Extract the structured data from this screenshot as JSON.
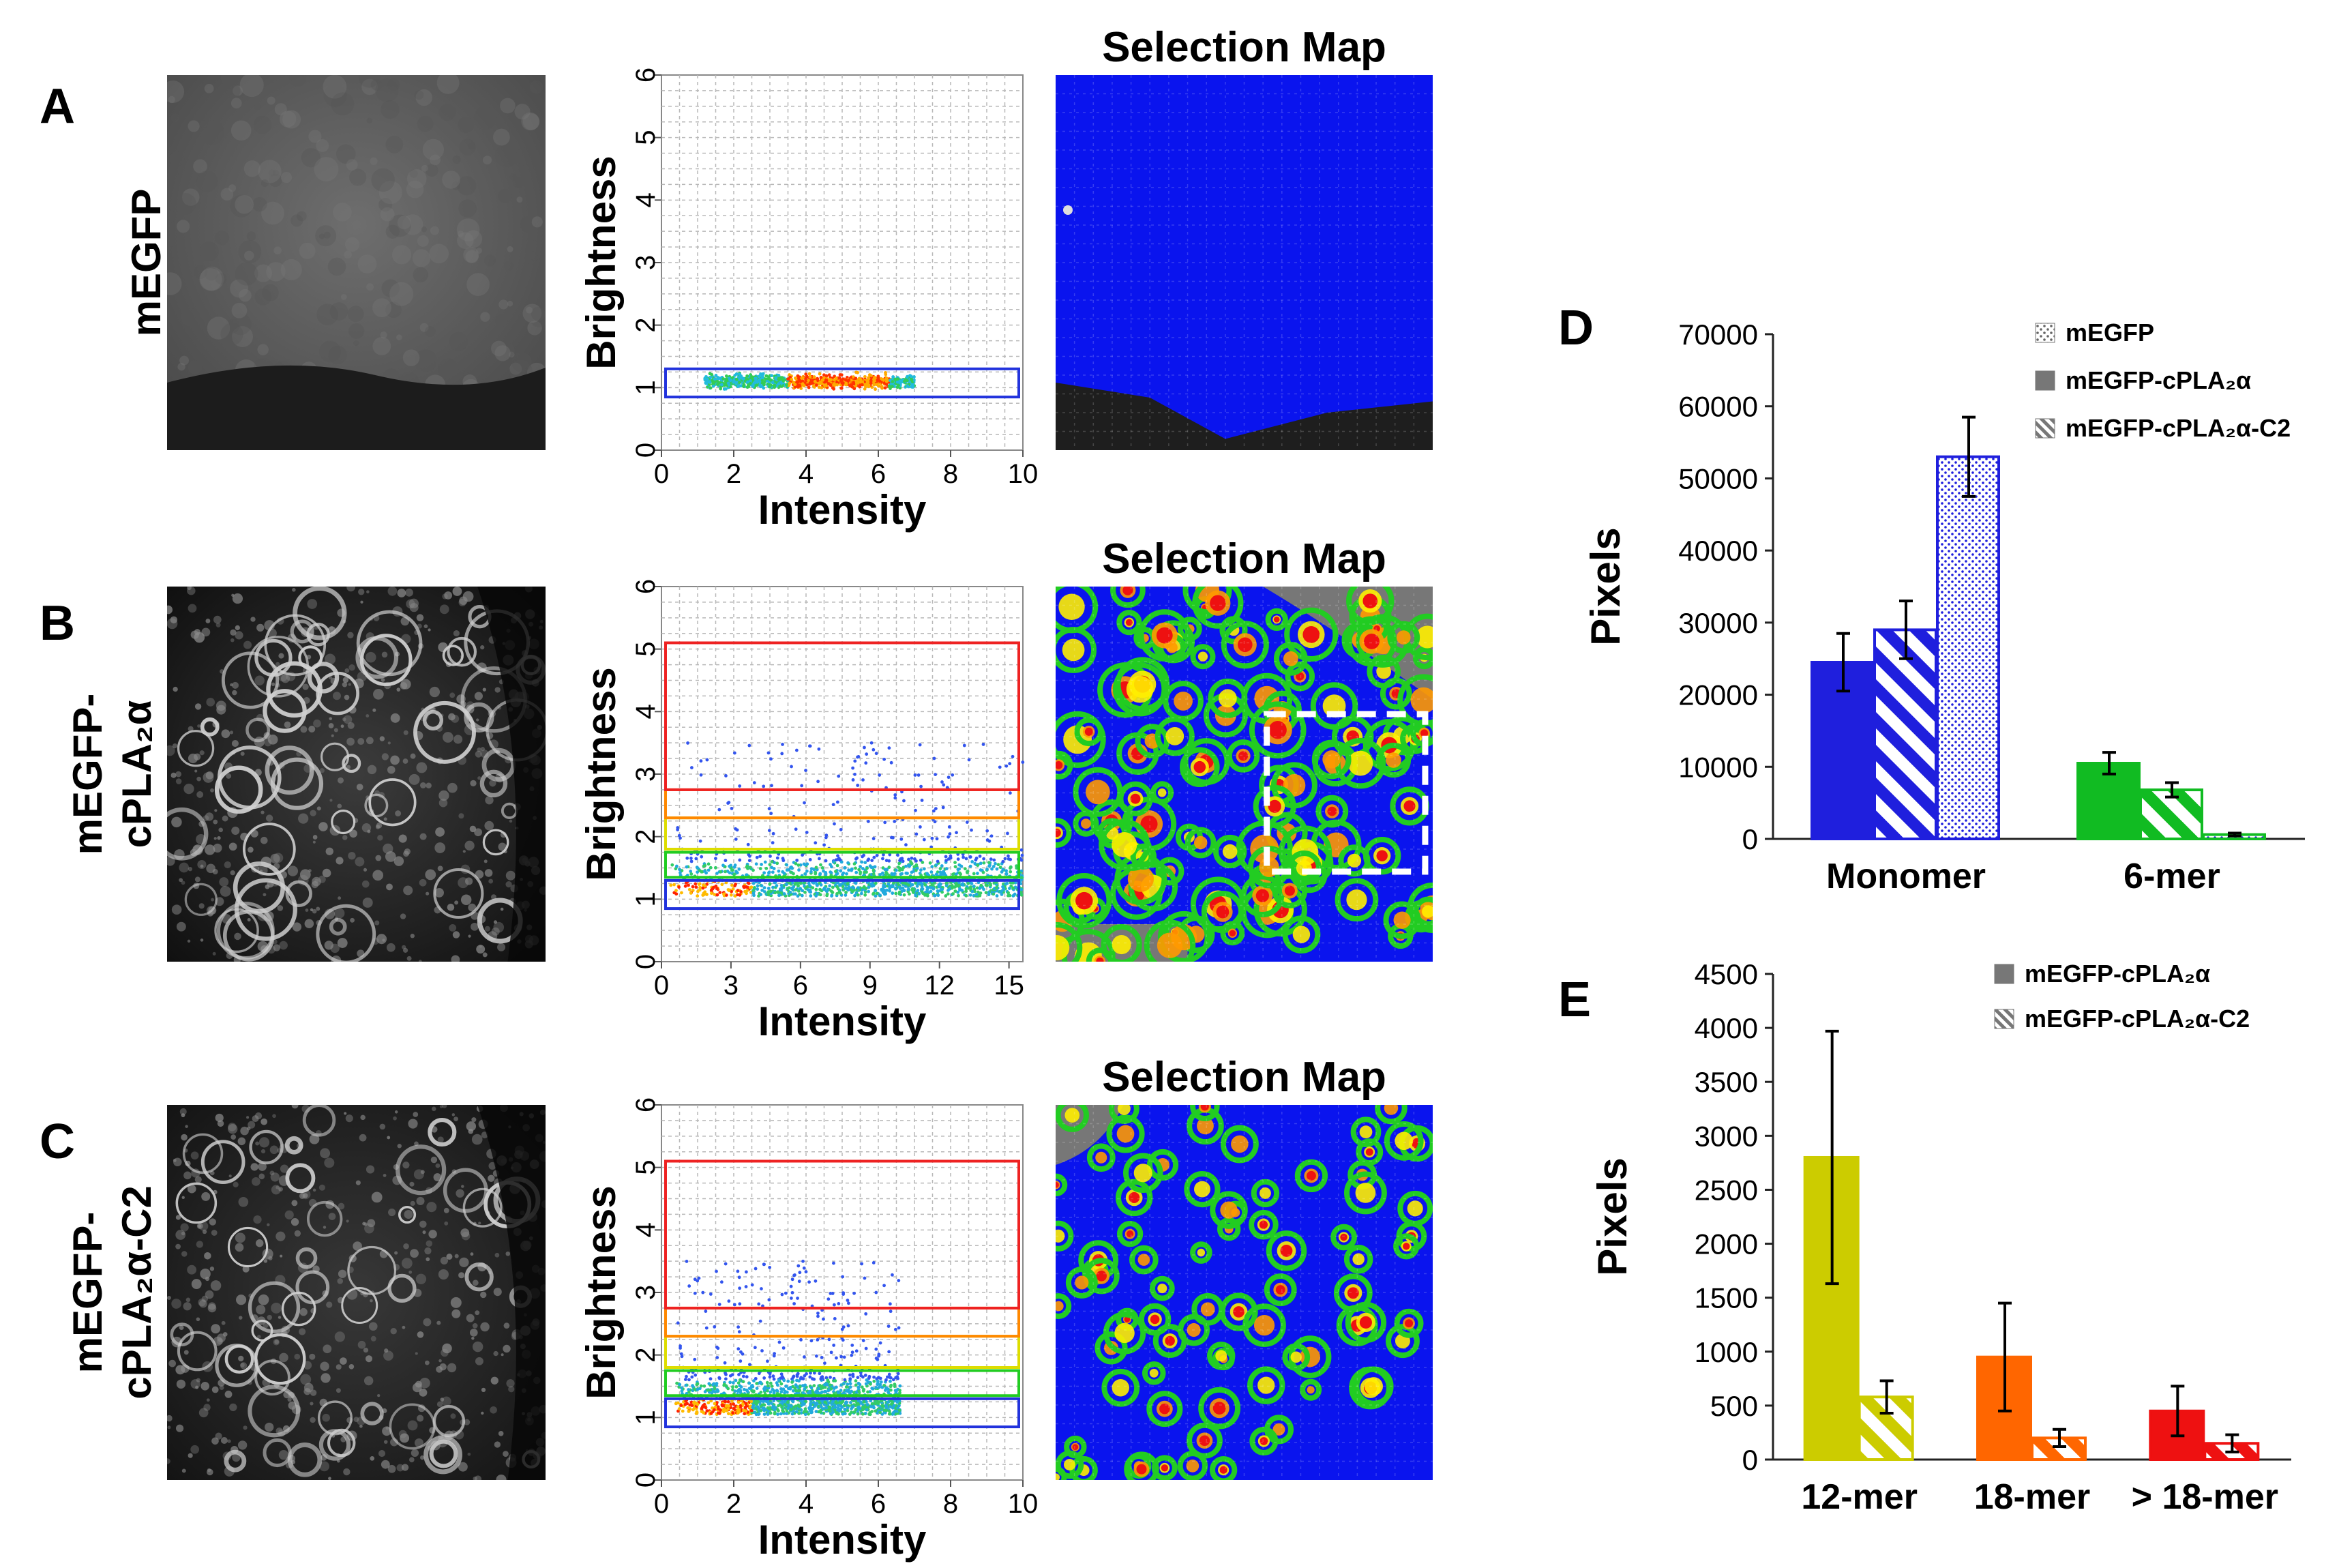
{
  "panel_letters": [
    "A",
    "B",
    "C",
    "D",
    "E"
  ],
  "rows": [
    {
      "row_label_lines": [
        "mEGFP"
      ],
      "map_title": "Selection Map",
      "scatter": {
        "xlabel": "Intensity",
        "ylabel": "Brightness",
        "xticks": [
          "0",
          "2",
          "4",
          "6",
          "8",
          "10"
        ],
        "xlim": [
          0,
          10
        ],
        "yticks": [
          "0",
          "1",
          "2",
          "3",
          "4",
          "5",
          "6"
        ],
        "ylim": [
          0,
          6
        ],
        "selection_boxes": [
          {
            "color": "#2233dd",
            "bmin": 0.85,
            "bmax": 1.3
          }
        ]
      }
    },
    {
      "row_label_lines": [
        "mEGFP-",
        "cPLA₂α"
      ],
      "map_title": "Selection Map",
      "scatter": {
        "xlabel": "Intensity",
        "ylabel": "Brightness",
        "xticks": [
          "0",
          "3",
          "6",
          "9",
          "12",
          "15"
        ],
        "xlim": [
          0,
          15.6
        ],
        "yticks": [
          "0",
          "1",
          "2",
          "3",
          "4",
          "5",
          "6"
        ],
        "ylim": [
          0,
          6
        ],
        "selection_boxes": [
          {
            "color": "#2233dd",
            "bmin": 0.85,
            "bmax": 1.3
          },
          {
            "color": "#22cc22",
            "bmin": 1.35,
            "bmax": 1.75
          },
          {
            "color": "#dddd00",
            "bmin": 1.8,
            "bmax": 2.3
          },
          {
            "color": "#ff8800",
            "bmin": 2.3,
            "bmax": 2.75
          },
          {
            "color": "#ee2222",
            "bmin": 2.75,
            "bmax": 5.1
          }
        ]
      }
    },
    {
      "row_label_lines": [
        "mEGFP-",
        "cPLA₂α-C2"
      ],
      "map_title": "Selection Map",
      "scatter": {
        "xlabel": "Intensity",
        "ylabel": "Brightness",
        "xticks": [
          "0",
          "2",
          "4",
          "6",
          "8",
          "10"
        ],
        "xlim": [
          0,
          10
        ],
        "yticks": [
          "0",
          "1",
          "2",
          "3",
          "4",
          "5",
          "6"
        ],
        "ylim": [
          0,
          6
        ],
        "selection_boxes": [
          {
            "color": "#2233dd",
            "bmin": 0.85,
            "bmax": 1.3
          },
          {
            "color": "#22cc22",
            "bmin": 1.35,
            "bmax": 1.75
          },
          {
            "color": "#dddd00",
            "bmin": 1.8,
            "bmax": 2.3
          },
          {
            "color": "#ff8800",
            "bmin": 2.3,
            "bmax": 2.75
          },
          {
            "color": "#ee2222",
            "bmin": 2.75,
            "bmax": 5.1
          }
        ]
      }
    }
  ],
  "chart_data": [
    {
      "panel": "D",
      "type": "bar",
      "ylabel": "Pixels",
      "ylim": [
        0,
        70000
      ],
      "yticks": [
        "0",
        "10000",
        "20000",
        "30000",
        "40000",
        "50000",
        "60000",
        "70000"
      ],
      "categories": [
        "Monomer",
        "6-mer"
      ],
      "category_colors": [
        "#1f1fdd",
        "#11bb22"
      ],
      "series": [
        {
          "name": "mEGFP-cPLA₂α",
          "pattern": "solid",
          "values": [
            24500,
            10500
          ],
          "errors": [
            4000,
            1500
          ]
        },
        {
          "name": "mEGFP-cPLA₂α-C2",
          "pattern": "hatched",
          "values": [
            29000,
            6800
          ],
          "errors": [
            4000,
            1000
          ]
        },
        {
          "name": "mEGFP",
          "pattern": "dotted",
          "values": [
            53000,
            600
          ],
          "errors": [
            5500,
            200
          ]
        }
      ],
      "legend": [
        {
          "label": "mEGFP",
          "pattern": "dotted"
        },
        {
          "label": "mEGFP-cPLA₂α",
          "pattern": "solid"
        },
        {
          "label": "mEGFP-cPLA₂α-C2",
          "pattern": "hatched"
        }
      ],
      "legend_position": "top-right"
    },
    {
      "panel": "E",
      "type": "bar",
      "ylabel": "Pixels",
      "ylim": [
        0,
        4500
      ],
      "yticks": [
        "0",
        "500",
        "1000",
        "1500",
        "2000",
        "2500",
        "3000",
        "3500",
        "4000",
        "4500"
      ],
      "categories": [
        "12-mer",
        "18-mer",
        "> 18-mer"
      ],
      "category_colors": [
        "#cccc00",
        "#ff6600",
        "#ee1111"
      ],
      "series": [
        {
          "name": "mEGFP-cPLA₂α",
          "pattern": "solid",
          "values": [
            2800,
            950,
            450
          ],
          "errors": [
            1170,
            500,
            230
          ]
        },
        {
          "name": "mEGFP-cPLA₂α-C2",
          "pattern": "hatched",
          "values": [
            580,
            200,
            150
          ],
          "errors": [
            150,
            80,
            80
          ]
        }
      ],
      "legend": [
        {
          "label": "mEGFP-cPLA₂α",
          "pattern": "solid"
        },
        {
          "label": "mEGFP-cPLA₂α-C2",
          "pattern": "hatched"
        }
      ],
      "legend_position": "top-right"
    }
  ]
}
